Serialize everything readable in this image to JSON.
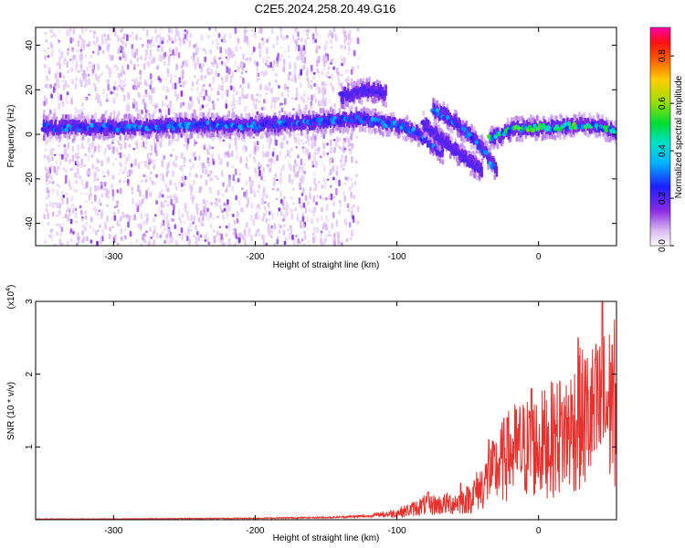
{
  "title": "C2E5.2024.258.20.49.G16",
  "colors": {
    "snr_line": "#e8302c",
    "text": "#000000",
    "frame": "#000000"
  },
  "chart_data": [
    {
      "type": "heatmap",
      "xlabel": "Height of straight line (km)",
      "ylabel": "Frequency (Hz)",
      "xlim": [
        -355,
        55
      ],
      "ylim": [
        -50,
        48
      ],
      "x_ticks": [
        -300,
        -200,
        -100,
        0
      ],
      "x_tick_labels": [
        "-300",
        "-200",
        "-100",
        "0"
      ],
      "y_ticks": [
        -40,
        -20,
        0,
        20,
        40
      ],
      "y_tick_labels": [
        "-40",
        "-20",
        "0",
        "20",
        "40"
      ],
      "colorbar": {
        "label": "Normalized spectral amplitude",
        "range": [
          0,
          0.92
        ],
        "ticks": [
          0.0,
          0.2,
          0.4,
          0.6,
          0.8
        ],
        "tick_labels": [
          "0.0",
          "0.2",
          "0.4",
          "0.6",
          "0.8"
        ],
        "colormap": "rainbow (white-purple-blue-cyan-green-yellow-red-magenta)"
      },
      "ridges": [
        {
          "name": "main",
          "points": [
            [
              -350,
              3
            ],
            [
              -300,
              3
            ],
            [
              -250,
              4
            ],
            [
              -200,
              4
            ],
            [
              -150,
              6
            ],
            [
              -125,
              7
            ],
            [
              -110,
              5
            ],
            [
              -95,
              3
            ],
            [
              -85,
              0
            ],
            [
              -75,
              -5
            ],
            [
              -68,
              -8
            ]
          ],
          "amplitude": 0.3
        },
        {
          "name": "upper",
          "points": [
            [
              -140,
              17
            ],
            [
              -128,
              19
            ],
            [
              -118,
              20
            ],
            [
              -108,
              18
            ]
          ],
          "amplitude": 0.2
        },
        {
          "name": "descending",
          "points": [
            [
              -75,
              11
            ],
            [
              -65,
              8
            ],
            [
              -55,
              3
            ],
            [
              -45,
              -3
            ],
            [
              -38,
              -8
            ],
            [
              -30,
              -17
            ]
          ],
          "amplitude": 0.3
        },
        {
          "name": "lower-branch",
          "points": [
            [
              -82,
              5
            ],
            [
              -72,
              -1
            ],
            [
              -60,
              -7
            ],
            [
              -48,
              -13
            ],
            [
              -40,
              -16
            ]
          ],
          "amplitude": 0.12
        },
        {
          "name": "recovery",
          "points": [
            [
              -35,
              -2
            ],
            [
              -20,
              2
            ],
            [
              -5,
              3
            ],
            [
              10,
              3
            ],
            [
              25,
              4
            ],
            [
              40,
              4
            ],
            [
              55,
              1
            ]
          ],
          "amplitude": 0.5
        }
      ],
      "scattered_noise_extent": [
        -350,
        -128
      ]
    },
    {
      "type": "line",
      "xlabel": "Height of straight line (km)",
      "ylabel": "SNR (10 * v/v)",
      "multiplier_label": "(x10",
      "multiplier_exponent": "4",
      "xlim": [
        -355,
        55
      ],
      "ylim": [
        0,
        3
      ],
      "x_ticks": [
        -300,
        -200,
        -100,
        0
      ],
      "x_tick_labels": [
        "-300",
        "-200",
        "-100",
        "0"
      ],
      "y_ticks": [
        1,
        2,
        3
      ],
      "y_tick_labels": [
        "1",
        "2",
        "3"
      ],
      "series": [
        {
          "points": [
            [
              -355,
              0.01
            ],
            [
              -300,
              0.01
            ],
            [
              -200,
              0.02
            ],
            [
              -150,
              0.03
            ],
            [
              -120,
              0.05
            ],
            [
              -100,
              0.1
            ],
            [
              -90,
              0.15
            ],
            [
              -80,
              0.22
            ],
            [
              -70,
              0.22
            ],
            [
              -60,
              0.25
            ],
            [
              -50,
              0.3
            ],
            [
              -40,
              0.5
            ],
            [
              -30,
              0.75
            ],
            [
              -20,
              1.0
            ],
            [
              -10,
              1.05
            ],
            [
              0,
              1.1
            ],
            [
              10,
              1.2
            ],
            [
              20,
              1.3
            ],
            [
              30,
              1.5
            ],
            [
              40,
              1.55
            ],
            [
              50,
              1.7
            ],
            [
              55,
              1.75
            ]
          ],
          "spikes": [
            [
              -78,
              0.38
            ],
            [
              -55,
              0.5
            ],
            [
              -35,
              1.1
            ],
            [
              -22,
              1.4
            ],
            [
              -5,
              1.8
            ],
            [
              15,
              1.9
            ],
            [
              28,
              2.5
            ],
            [
              40,
              2.2
            ],
            [
              45,
              3.0
            ],
            [
              52,
              2.4
            ]
          ]
        }
      ]
    }
  ]
}
